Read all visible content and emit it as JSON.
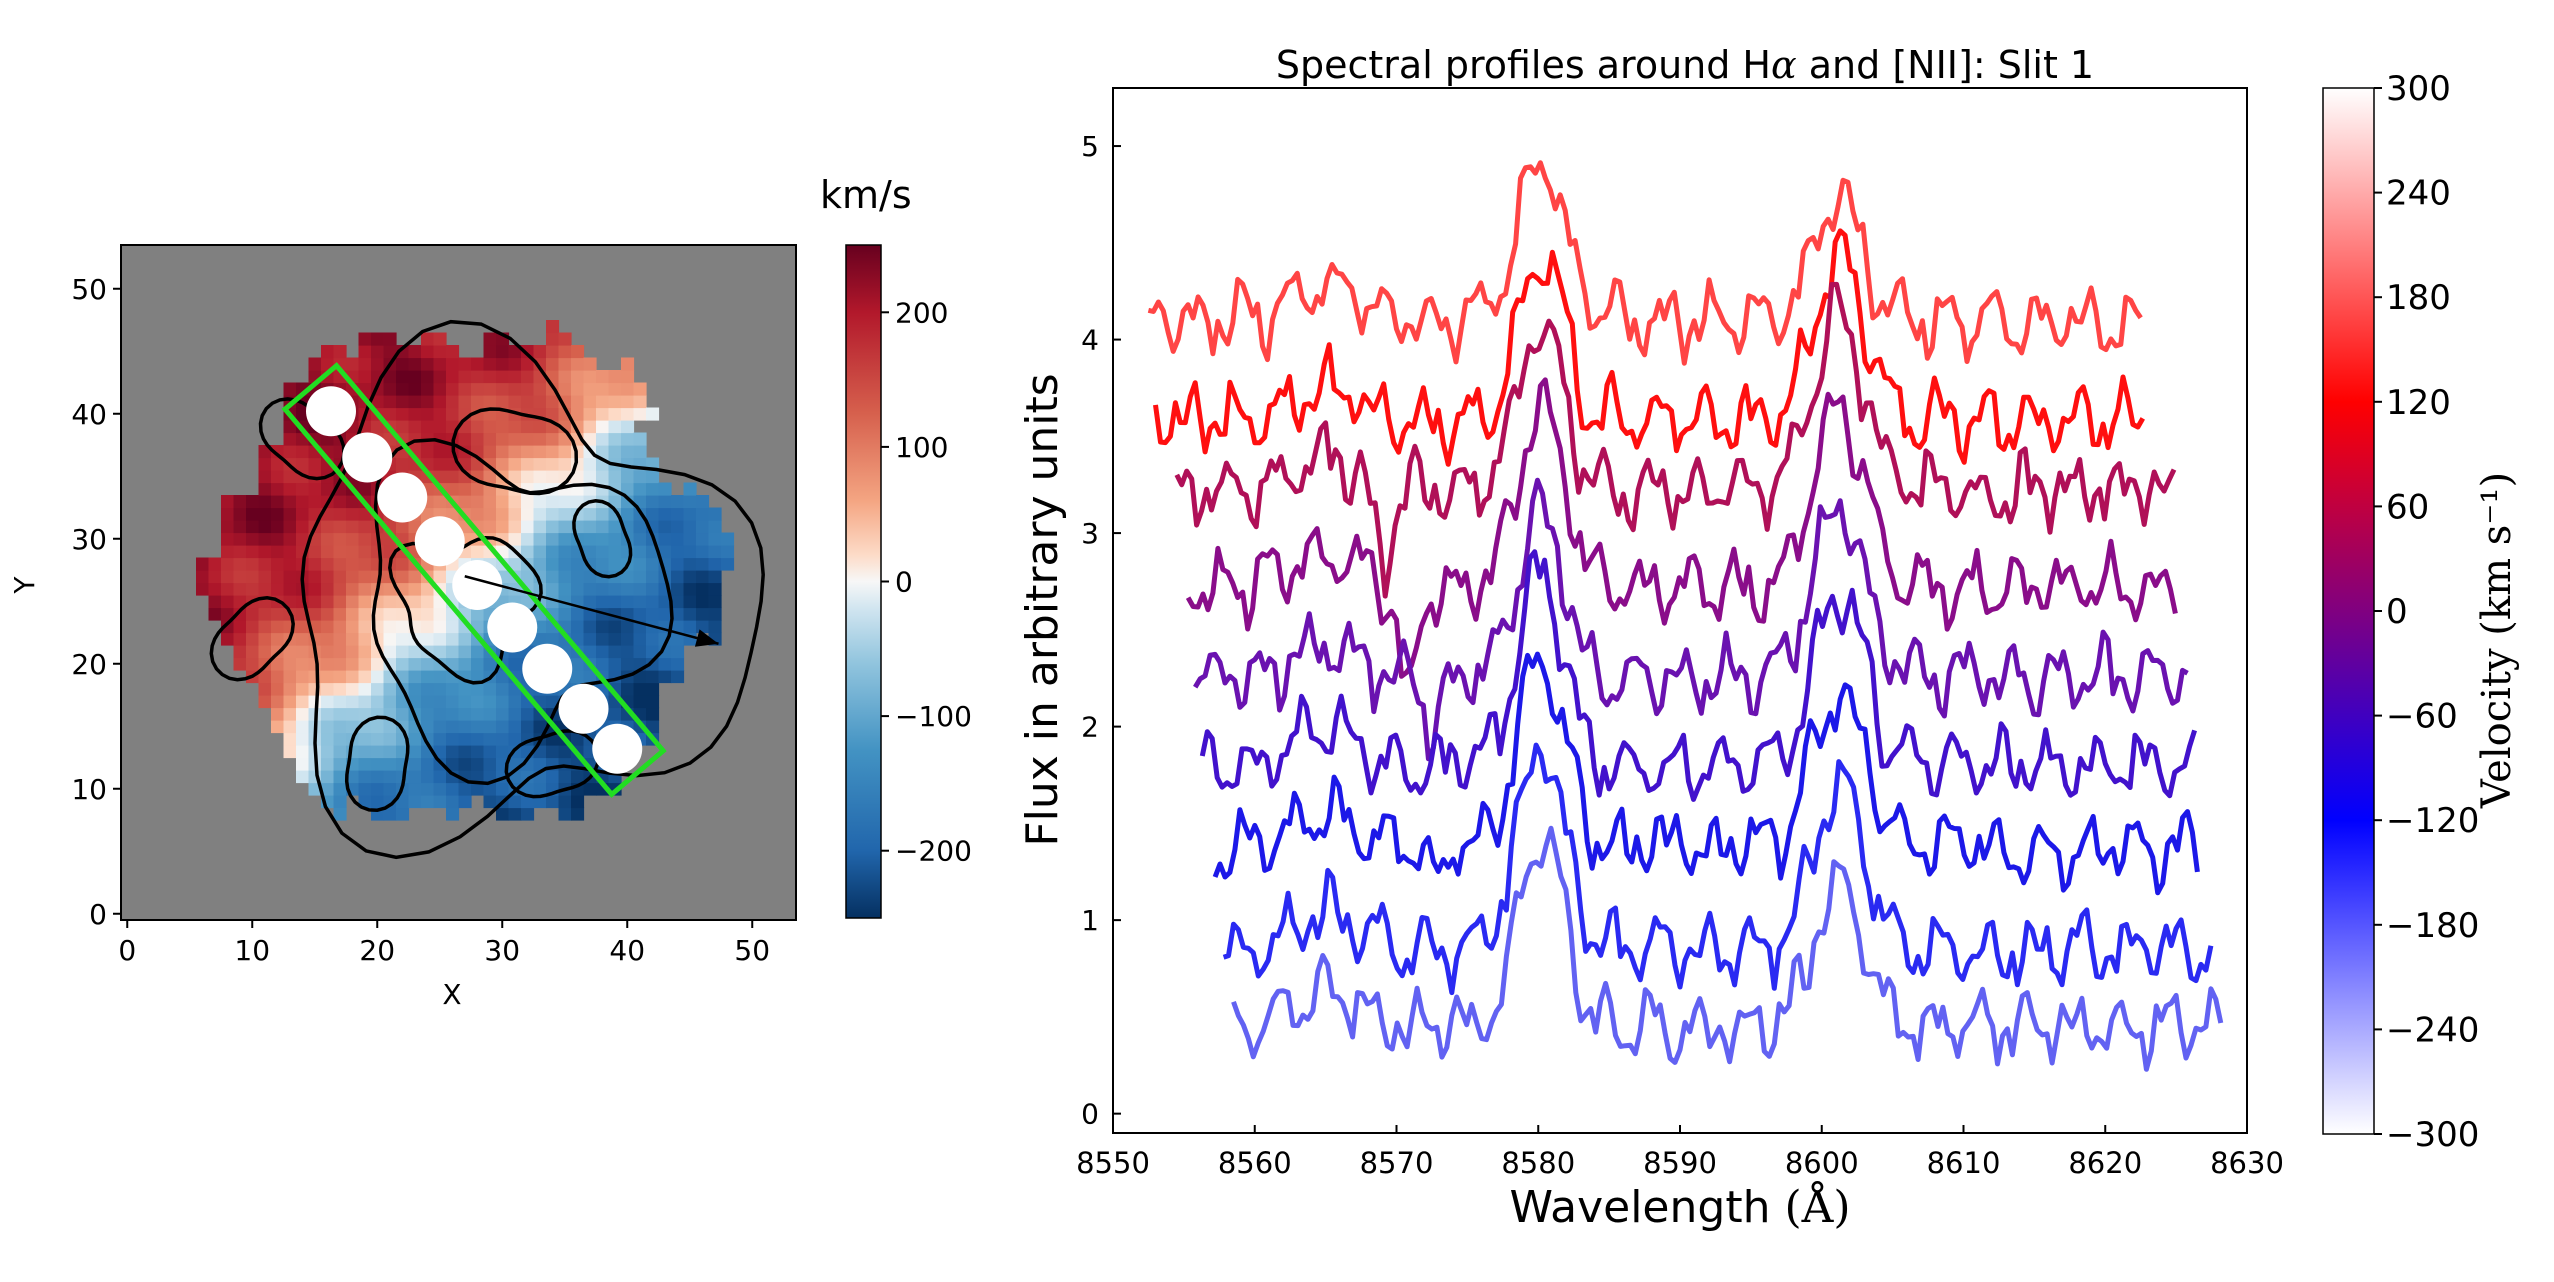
{
  "chart_data": [
    {
      "type": "heatmap",
      "title": "",
      "xlabel": "X",
      "ylabel": "Y",
      "xlim": [
        -0.5,
        53.5
      ],
      "ylim": [
        -0.5,
        53.5
      ],
      "xticks": [
        "0",
        "10",
        "20",
        "30",
        "40",
        "50"
      ],
      "yticks": [
        "0",
        "10",
        "20",
        "30",
        "40",
        "50"
      ],
      "background_color": "#808080",
      "colormap": "RdBu_r",
      "colorbar": {
        "label": "km/s",
        "range": [
          -250,
          250
        ],
        "ticks": [
          "200",
          "100",
          "0",
          "−100",
          "−200"
        ]
      },
      "velocity_field": {
        "center": [
          27,
          27
        ],
        "radius": 21.5,
        "gradient_direction": "positive toward upper-left, negative toward lower-right",
        "max_abs_velocity": 230
      },
      "slit": {
        "color": "#22dd22",
        "start": [
          16.3,
          40.2
        ],
        "end": [
          39.2,
          13.2
        ],
        "apertures": [
          [
            16.3,
            40.2
          ],
          [
            19.2,
            36.5
          ],
          [
            22.0,
            33.3
          ],
          [
            25.0,
            29.8
          ],
          [
            28.0,
            26.3
          ],
          [
            30.8,
            22.9
          ],
          [
            33.6,
            19.6
          ],
          [
            36.5,
            16.4
          ],
          [
            39.2,
            13.2
          ]
        ],
        "aperture_color": "#ffffff"
      },
      "arrow": {
        "from": [
          27.0,
          27.0
        ],
        "to": [
          47.3,
          21.6
        ],
        "color": "#000000"
      },
      "contours_color": "#000000"
    },
    {
      "type": "line",
      "title": "Spectral profiles around H",
      "title_symbol": "α",
      "title_suffix": " and [NII]: Slit 1",
      "xlabel": "Wavelength ",
      "xlabel_unit": "(Å)",
      "ylabel": "Flux in arbitrary units",
      "xlim": [
        8550,
        8630
      ],
      "ylim": [
        -0.1,
        5.3
      ],
      "xticks": [
        "8550",
        "8560",
        "8570",
        "8580",
        "8590",
        "8600",
        "8610",
        "8620",
        "8630"
      ],
      "yticks": [
        "0",
        "1",
        "2",
        "3",
        "4",
        "5"
      ],
      "line_components": {
        "halpha_center": 8580.2,
        "nii_center": 8601.2
      },
      "series": [
        {
          "color": "#ff4545",
          "offset": 4.1,
          "halpha_amp": 0.85,
          "nii_amp": 0.6,
          "x_start": 8552.5,
          "x_end": 8622.8
        },
        {
          "color": "#ff0f0f",
          "offset": 3.58,
          "halpha_amp": 0.85,
          "nii_amp": 0.85,
          "x_start": 8553.0,
          "x_end": 8623.0
        },
        {
          "color": "#b01058",
          "offset": 3.22,
          "halpha_amp": 0.85,
          "nii_amp": 0.9,
          "x_start": 8554.5,
          "x_end": 8625.0
        },
        {
          "color": "#8a0d8a",
          "offset": 2.72,
          "halpha_amp": 0.95,
          "nii_amp": 0.95,
          "x_start": 8555.3,
          "x_end": 8625.3
        },
        {
          "color": "#6a12b0",
          "offset": 2.25,
          "halpha_amp": 0.85,
          "nii_amp": 0.9,
          "x_start": 8555.8,
          "x_end": 8626.0
        },
        {
          "color": "#4212cc",
          "offset": 1.8,
          "halpha_amp": 1.0,
          "nii_amp": 0.9,
          "x_start": 8556.3,
          "x_end": 8626.4
        },
        {
          "color": "#1c18e8",
          "offset": 1.38,
          "halpha_amp": 1.0,
          "nii_amp": 0.8,
          "x_start": 8557.2,
          "x_end": 8626.8
        },
        {
          "color": "#2a2af2",
          "offset": 0.85,
          "halpha_amp": 1.05,
          "nii_amp": 0.85,
          "x_start": 8557.8,
          "x_end": 8627.8
        },
        {
          "color": "#6262f2",
          "offset": 0.45,
          "halpha_amp": 1.0,
          "nii_amp": 0.72,
          "x_start": 8558.5,
          "x_end": 8628.5
        }
      ],
      "absorption_features": [
        {
          "series_index": 2,
          "x": 8569.0,
          "depth": 0.45
        },
        {
          "series_index": 3,
          "x": 8570.8,
          "depth": 0.62
        },
        {
          "series_index": 4,
          "x": 8572.5,
          "depth": 0.25
        },
        {
          "series_index": 6,
          "x": 8572.7,
          "depth": 0.2
        }
      ],
      "colorbar": {
        "label": "Velocity ",
        "label_unit": "(km s⁻¹)",
        "range": [
          -300,
          300
        ],
        "ticks": [
          "300",
          "240",
          "180",
          "120",
          "60",
          "0",
          "−60",
          "−120",
          "−180",
          "−240",
          "−300"
        ],
        "colors": [
          "#ffffff",
          "#ff0000",
          "#800080",
          "#0000ff",
          "#ffffff"
        ]
      }
    }
  ]
}
